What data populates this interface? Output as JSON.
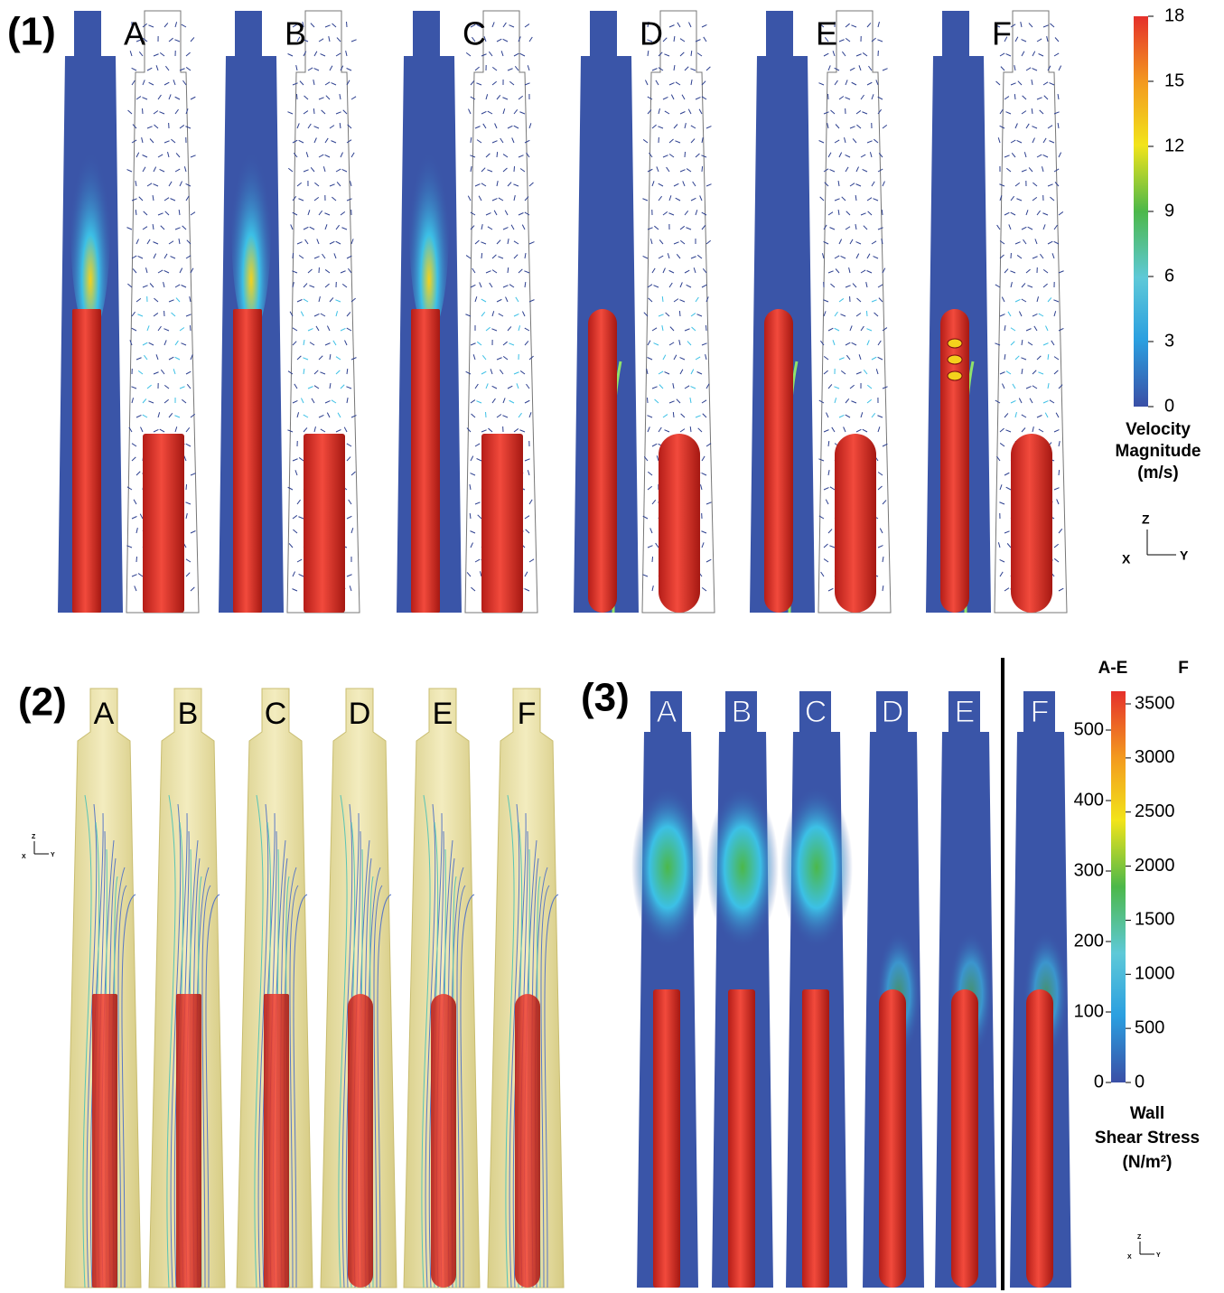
{
  "panel1": {
    "label": "(1)",
    "cases": [
      "A",
      "B",
      "C",
      "D",
      "E",
      "F"
    ],
    "colorbar": {
      "ticks": [
        0,
        3,
        6,
        9,
        12,
        15,
        18
      ],
      "title": [
        "Velocity",
        "Magnitude",
        "(m/s)"
      ]
    },
    "axes": {
      "z": "Z",
      "x": "X",
      "y": "Y"
    }
  },
  "panel2": {
    "label": "(2)",
    "cases": [
      "A",
      "B",
      "C",
      "D",
      "E",
      "F"
    ],
    "axes": {
      "z": "Z",
      "x": "X",
      "y": "Y"
    }
  },
  "panel3": {
    "label": "(3)",
    "cases": [
      "A",
      "B",
      "C",
      "D",
      "E",
      "F"
    ],
    "colorbar": {
      "headers": [
        "A-E",
        "F"
      ],
      "ticks_ae": [
        0,
        100,
        200,
        300,
        400,
        500
      ],
      "ticks_f": [
        0,
        500,
        1000,
        1500,
        2000,
        2500,
        3000,
        3500
      ],
      "title": [
        "Wall",
        "Shear Stress",
        "(N/m²)"
      ]
    },
    "axes": {
      "z": "Z",
      "x": "X",
      "y": "Y"
    }
  }
}
